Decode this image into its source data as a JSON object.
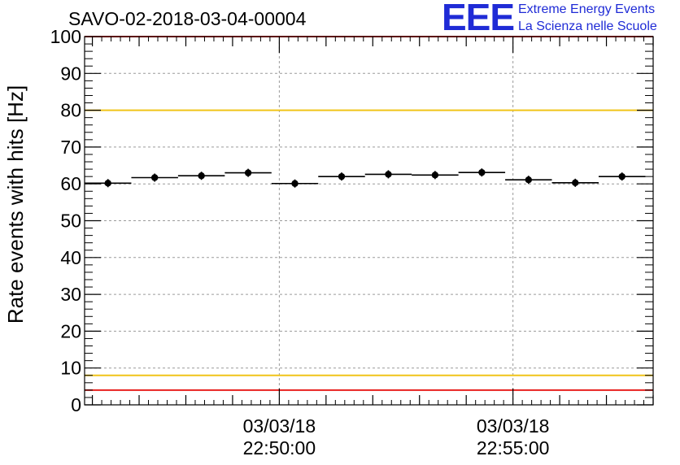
{
  "header": {
    "title": "SAVO-02-2018-03-04-00004",
    "logo_mark": "EEE",
    "logo_line1": "Extreme Energy Events",
    "logo_line2": "La Scienza nelle Scuole"
  },
  "chart_data": {
    "type": "scatter",
    "title": "SAVO-02-2018-03-04-00004",
    "xlabel": "",
    "ylabel": "Rate events with hits [Hz]",
    "xlim": [
      "2018-03-03 22:45:50",
      "2018-03-03 22:58:00"
    ],
    "ylim": [
      0,
      100
    ],
    "grid": true,
    "y_ticks": [
      0,
      10,
      20,
      30,
      40,
      50,
      60,
      70,
      80,
      90,
      100
    ],
    "x_ticks": [
      {
        "x": "2018-03-03 22:50:00",
        "date": "03/03/18",
        "time": "22:50:00"
      },
      {
        "x": "2018-03-03 22:55:00",
        "date": "03/03/18",
        "time": "22:55:00"
      }
    ],
    "bin_width_seconds": 60,
    "x": [
      "2018-03-03 22:46:20",
      "2018-03-03 22:47:20",
      "2018-03-03 22:48:20",
      "2018-03-03 22:49:20",
      "2018-03-03 22:50:20",
      "2018-03-03 22:51:20",
      "2018-03-03 22:52:20",
      "2018-03-03 22:53:20",
      "2018-03-03 22:54:20",
      "2018-03-03 22:55:20",
      "2018-03-03 22:56:20",
      "2018-03-03 22:57:20"
    ],
    "values": [
      60.2,
      61.7,
      62.2,
      63.0,
      60.1,
      62.0,
      62.6,
      62.4,
      63.1,
      61.1,
      60.3,
      62.0
    ],
    "reference_lines": [
      {
        "y": 100,
        "color": "#e8211e"
      },
      {
        "y": 80,
        "color": "#f0c419"
      },
      {
        "y": 8,
        "color": "#f0c419"
      },
      {
        "y": 4,
        "color": "#e8211e"
      }
    ]
  }
}
